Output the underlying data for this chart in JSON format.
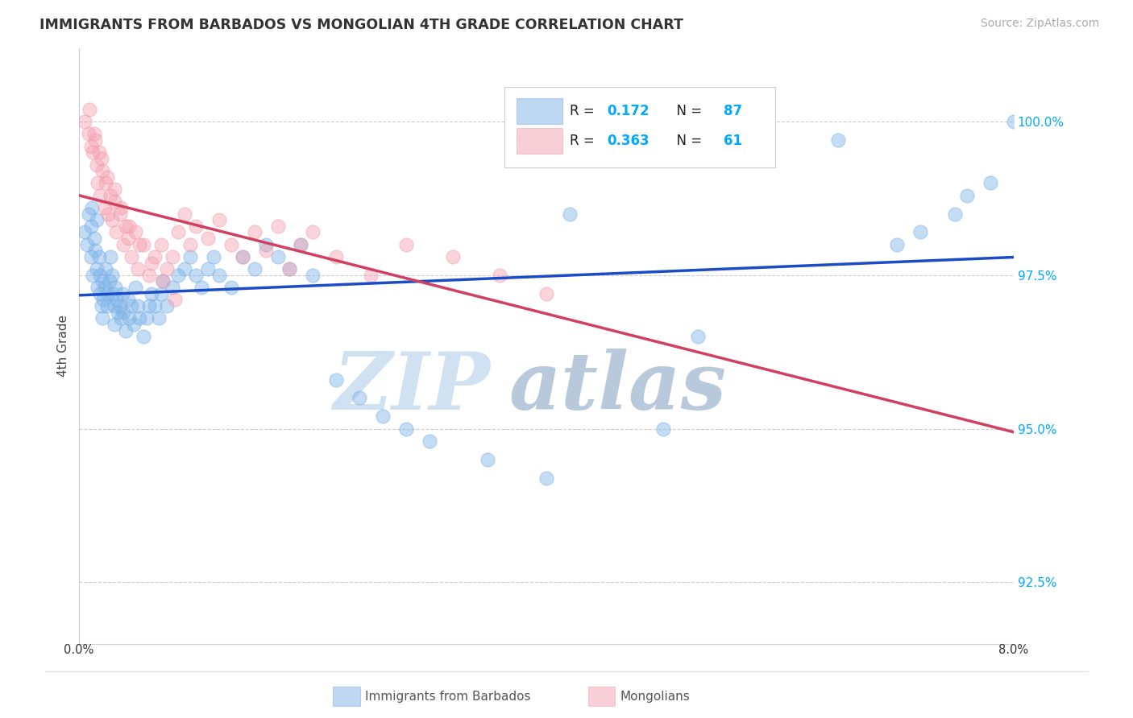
{
  "title": "IMMIGRANTS FROM BARBADOS VS MONGOLIAN 4TH GRADE CORRELATION CHART",
  "source": "Source: ZipAtlas.com",
  "ylabel": "4th Grade",
  "xlim": [
    0.0,
    8.0
  ],
  "ylim": [
    91.5,
    101.2
  ],
  "yticks": [
    92.5,
    95.0,
    97.5,
    100.0
  ],
  "ytick_labels": [
    "92.5%",
    "95.0%",
    "97.5%",
    "100.0%"
  ],
  "watermark_zip": "ZIP",
  "watermark_atlas": "atlas",
  "blue_color": "#7EB3E8",
  "pink_color": "#F4A0B0",
  "blue_line_color": "#1A4CC8",
  "pink_line_color": "#D04060",
  "cyan_color": "#00AAFF",
  "grid_color": "#CCCCCC",
  "blue_scatter_x": [
    0.05,
    0.07,
    0.08,
    0.1,
    0.1,
    0.11,
    0.12,
    0.13,
    0.14,
    0.15,
    0.15,
    0.16,
    0.17,
    0.18,
    0.18,
    0.19,
    0.2,
    0.2,
    0.21,
    0.22,
    0.23,
    0.24,
    0.25,
    0.26,
    0.27,
    0.28,
    0.29,
    0.3,
    0.3,
    0.31,
    0.32,
    0.33,
    0.35,
    0.36,
    0.37,
    0.38,
    0.4,
    0.42,
    0.43,
    0.45,
    0.47,
    0.48,
    0.5,
    0.52,
    0.55,
    0.58,
    0.6,
    0.62,
    0.65,
    0.68,
    0.7,
    0.72,
    0.75,
    0.8,
    0.85,
    0.9,
    0.95,
    1.0,
    1.05,
    1.1,
    1.15,
    1.2,
    1.3,
    1.4,
    1.5,
    1.6,
    1.7,
    1.8,
    1.9,
    2.0,
    2.2,
    2.4,
    2.6,
    2.8,
    3.0,
    3.5,
    4.0,
    5.0,
    5.3,
    6.5,
    7.0,
    7.2,
    7.5,
    7.6,
    7.8,
    8.0,
    4.2
  ],
  "blue_scatter_y": [
    98.2,
    98.0,
    98.5,
    97.8,
    98.3,
    98.6,
    97.5,
    98.1,
    97.9,
    98.4,
    97.6,
    97.3,
    97.8,
    97.2,
    97.5,
    97.0,
    97.4,
    96.8,
    97.1,
    97.3,
    97.6,
    97.0,
    97.2,
    97.4,
    97.8,
    97.5,
    97.2,
    97.0,
    96.7,
    97.3,
    97.1,
    96.9,
    97.0,
    96.8,
    97.2,
    96.9,
    96.6,
    97.1,
    96.8,
    97.0,
    96.7,
    97.3,
    97.0,
    96.8,
    96.5,
    96.8,
    97.0,
    97.2,
    97.0,
    96.8,
    97.2,
    97.4,
    97.0,
    97.3,
    97.5,
    97.6,
    97.8,
    97.5,
    97.3,
    97.6,
    97.8,
    97.5,
    97.3,
    97.8,
    97.6,
    98.0,
    97.8,
    97.6,
    98.0,
    97.5,
    95.8,
    95.5,
    95.2,
    95.0,
    94.8,
    94.5,
    94.2,
    95.0,
    96.5,
    99.7,
    98.0,
    98.2,
    98.5,
    98.8,
    99.0,
    100.0,
    98.5
  ],
  "pink_scatter_x": [
    0.05,
    0.08,
    0.1,
    0.12,
    0.13,
    0.15,
    0.16,
    0.17,
    0.18,
    0.2,
    0.22,
    0.23,
    0.25,
    0.27,
    0.28,
    0.3,
    0.32,
    0.35,
    0.38,
    0.4,
    0.42,
    0.45,
    0.48,
    0.5,
    0.55,
    0.6,
    0.65,
    0.7,
    0.75,
    0.8,
    0.85,
    0.9,
    0.95,
    1.0,
    1.1,
    1.2,
    1.3,
    1.4,
    1.5,
    1.6,
    1.7,
    1.8,
    1.9,
    2.0,
    2.2,
    2.5,
    2.8,
    3.2,
    3.6,
    4.0,
    0.09,
    0.14,
    0.19,
    0.24,
    0.3,
    0.36,
    0.43,
    0.52,
    0.62,
    0.72,
    0.82
  ],
  "pink_scatter_y": [
    100.0,
    99.8,
    99.6,
    99.5,
    99.8,
    99.3,
    99.0,
    99.5,
    98.8,
    99.2,
    98.6,
    99.0,
    98.5,
    98.8,
    98.4,
    98.7,
    98.2,
    98.5,
    98.0,
    98.3,
    98.1,
    97.8,
    98.2,
    97.6,
    98.0,
    97.5,
    97.8,
    98.0,
    97.6,
    97.8,
    98.2,
    98.5,
    98.0,
    98.3,
    98.1,
    98.4,
    98.0,
    97.8,
    98.2,
    97.9,
    98.3,
    97.6,
    98.0,
    98.2,
    97.8,
    97.5,
    98.0,
    97.8,
    97.5,
    97.2,
    100.2,
    99.7,
    99.4,
    99.1,
    98.9,
    98.6,
    98.3,
    98.0,
    97.7,
    97.4,
    97.1
  ]
}
